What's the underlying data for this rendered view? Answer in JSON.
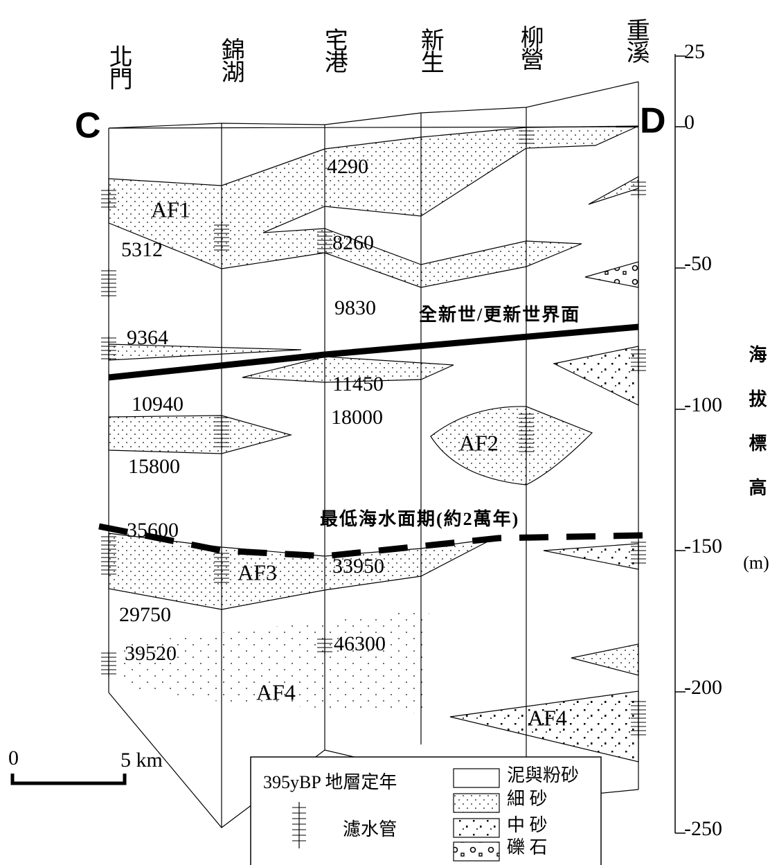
{
  "wells": [
    {
      "label": "北門"
    },
    {
      "label": "錦湖"
    },
    {
      "label": "宅港"
    },
    {
      "label": "新生"
    },
    {
      "label": "柳營"
    },
    {
      "label": "重溪"
    }
  ],
  "section": {
    "start": "C",
    "end": "D"
  },
  "axis": {
    "label": "海拔標高",
    "unit": "(m)",
    "ticks": [
      25,
      0,
      -50,
      -100,
      -150,
      -200,
      -250
    ]
  },
  "ages": [
    "4290",
    "5312",
    "8260",
    "9830",
    "9364",
    "11450",
    "10940",
    "18000",
    "15800",
    "35600",
    "33950",
    "29750",
    "39520",
    "46300"
  ],
  "units": [
    "AF1",
    "AF2",
    "AF3",
    "AF4",
    "AF4"
  ],
  "boundaries": {
    "holocene": "全新世/更新世界面",
    "lowstand": "最低海水面期(約2萬年)"
  },
  "scale": {
    "start": "0",
    "end": "5 km"
  },
  "legend": {
    "dating": "395yBP 地層定年",
    "screen": "濾水管",
    "items": [
      "泥與粉砂",
      "細 砂",
      "中 砂",
      "礫 石"
    ]
  }
}
